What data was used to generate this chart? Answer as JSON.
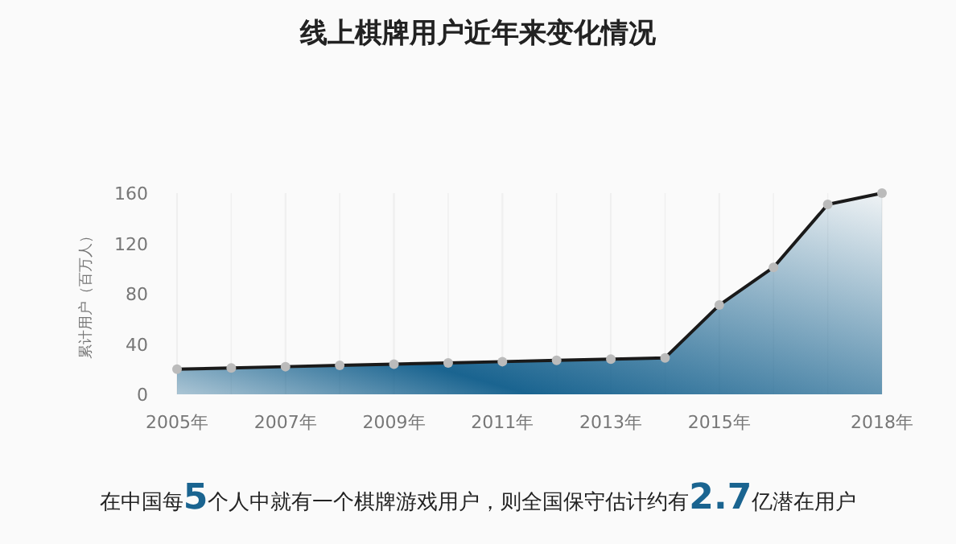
{
  "chart_data": {
    "type": "area",
    "title": "线上棋牌用户近年来变化情况",
    "ylabel": "累计用户（百万人）",
    "x": [
      2005,
      2006,
      2007,
      2008,
      2009,
      2010,
      2011,
      2012,
      2013,
      2014,
      2015,
      2016,
      2017,
      2018
    ],
    "series": [
      {
        "color": "#1a6490",
        "values": [
          20,
          21,
          22,
          23,
          24,
          25,
          26,
          27,
          28,
          29,
          71,
          101,
          151,
          160
        ]
      }
    ],
    "xlim": [
      2005,
      2018
    ],
    "xticks": [
      {
        "value": 2005,
        "label": "2005年"
      },
      {
        "value": 2007,
        "label": "2007年"
      },
      {
        "value": 2009,
        "label": "2009年"
      },
      {
        "value": 2011,
        "label": "2011年"
      },
      {
        "value": 2013,
        "label": "2013年"
      },
      {
        "value": 2015,
        "label": "2015年"
      },
      {
        "value": 2018,
        "label": "2018年"
      }
    ],
    "ylim": [
      0,
      160
    ],
    "yticks": [
      0,
      40,
      80,
      120,
      160
    ],
    "grid": "x",
    "marker": "circle",
    "annotations": [
      "在中国每5个人中就有一个棋牌游戏用户，则全国保守估计约有2.7亿潜在用户"
    ]
  }
}
